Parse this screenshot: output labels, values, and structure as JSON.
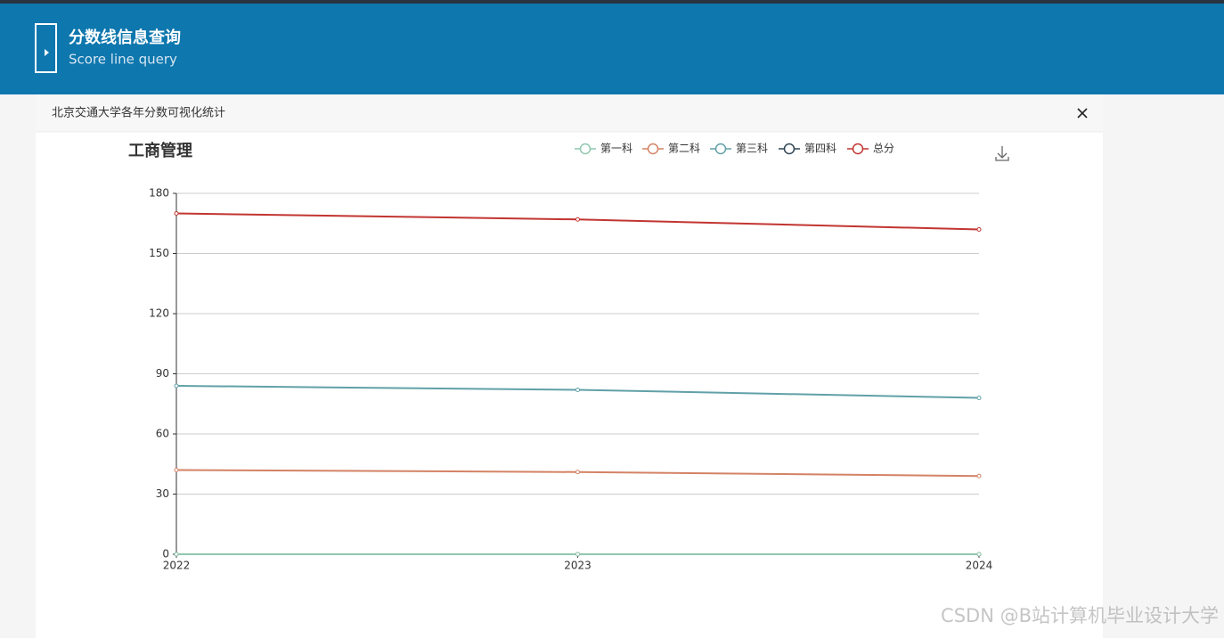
{
  "header": {
    "title": "分数线信息查询",
    "subtitle": "Score line query"
  },
  "dialog": {
    "title": "北京交通大学各年分数可视化统计"
  },
  "watermark": "CSDN @B站计算机毕业设计大学",
  "chart_data": {
    "type": "line",
    "title": "工商管理",
    "categories": [
      "2022",
      "2023",
      "2024"
    ],
    "series": [
      {
        "name": "第一科",
        "color": "#91c7ae",
        "values": [
          0,
          0,
          0
        ]
      },
      {
        "name": "第二科",
        "color": "#d48265",
        "values": [
          42,
          41,
          39
        ]
      },
      {
        "name": "第三科",
        "color": "#61a0a8",
        "values": [
          84,
          82,
          78
        ]
      },
      {
        "name": "第四科",
        "color": "#2f4554",
        "values": [
          0,
          0,
          0
        ]
      },
      {
        "name": "总分",
        "color": "#c23531",
        "values": [
          170,
          167,
          162
        ]
      }
    ],
    "ylim": [
      0,
      180
    ],
    "yticks": [
      0,
      30,
      60,
      90,
      120,
      150,
      180
    ],
    "grid": true,
    "legend": "top"
  }
}
